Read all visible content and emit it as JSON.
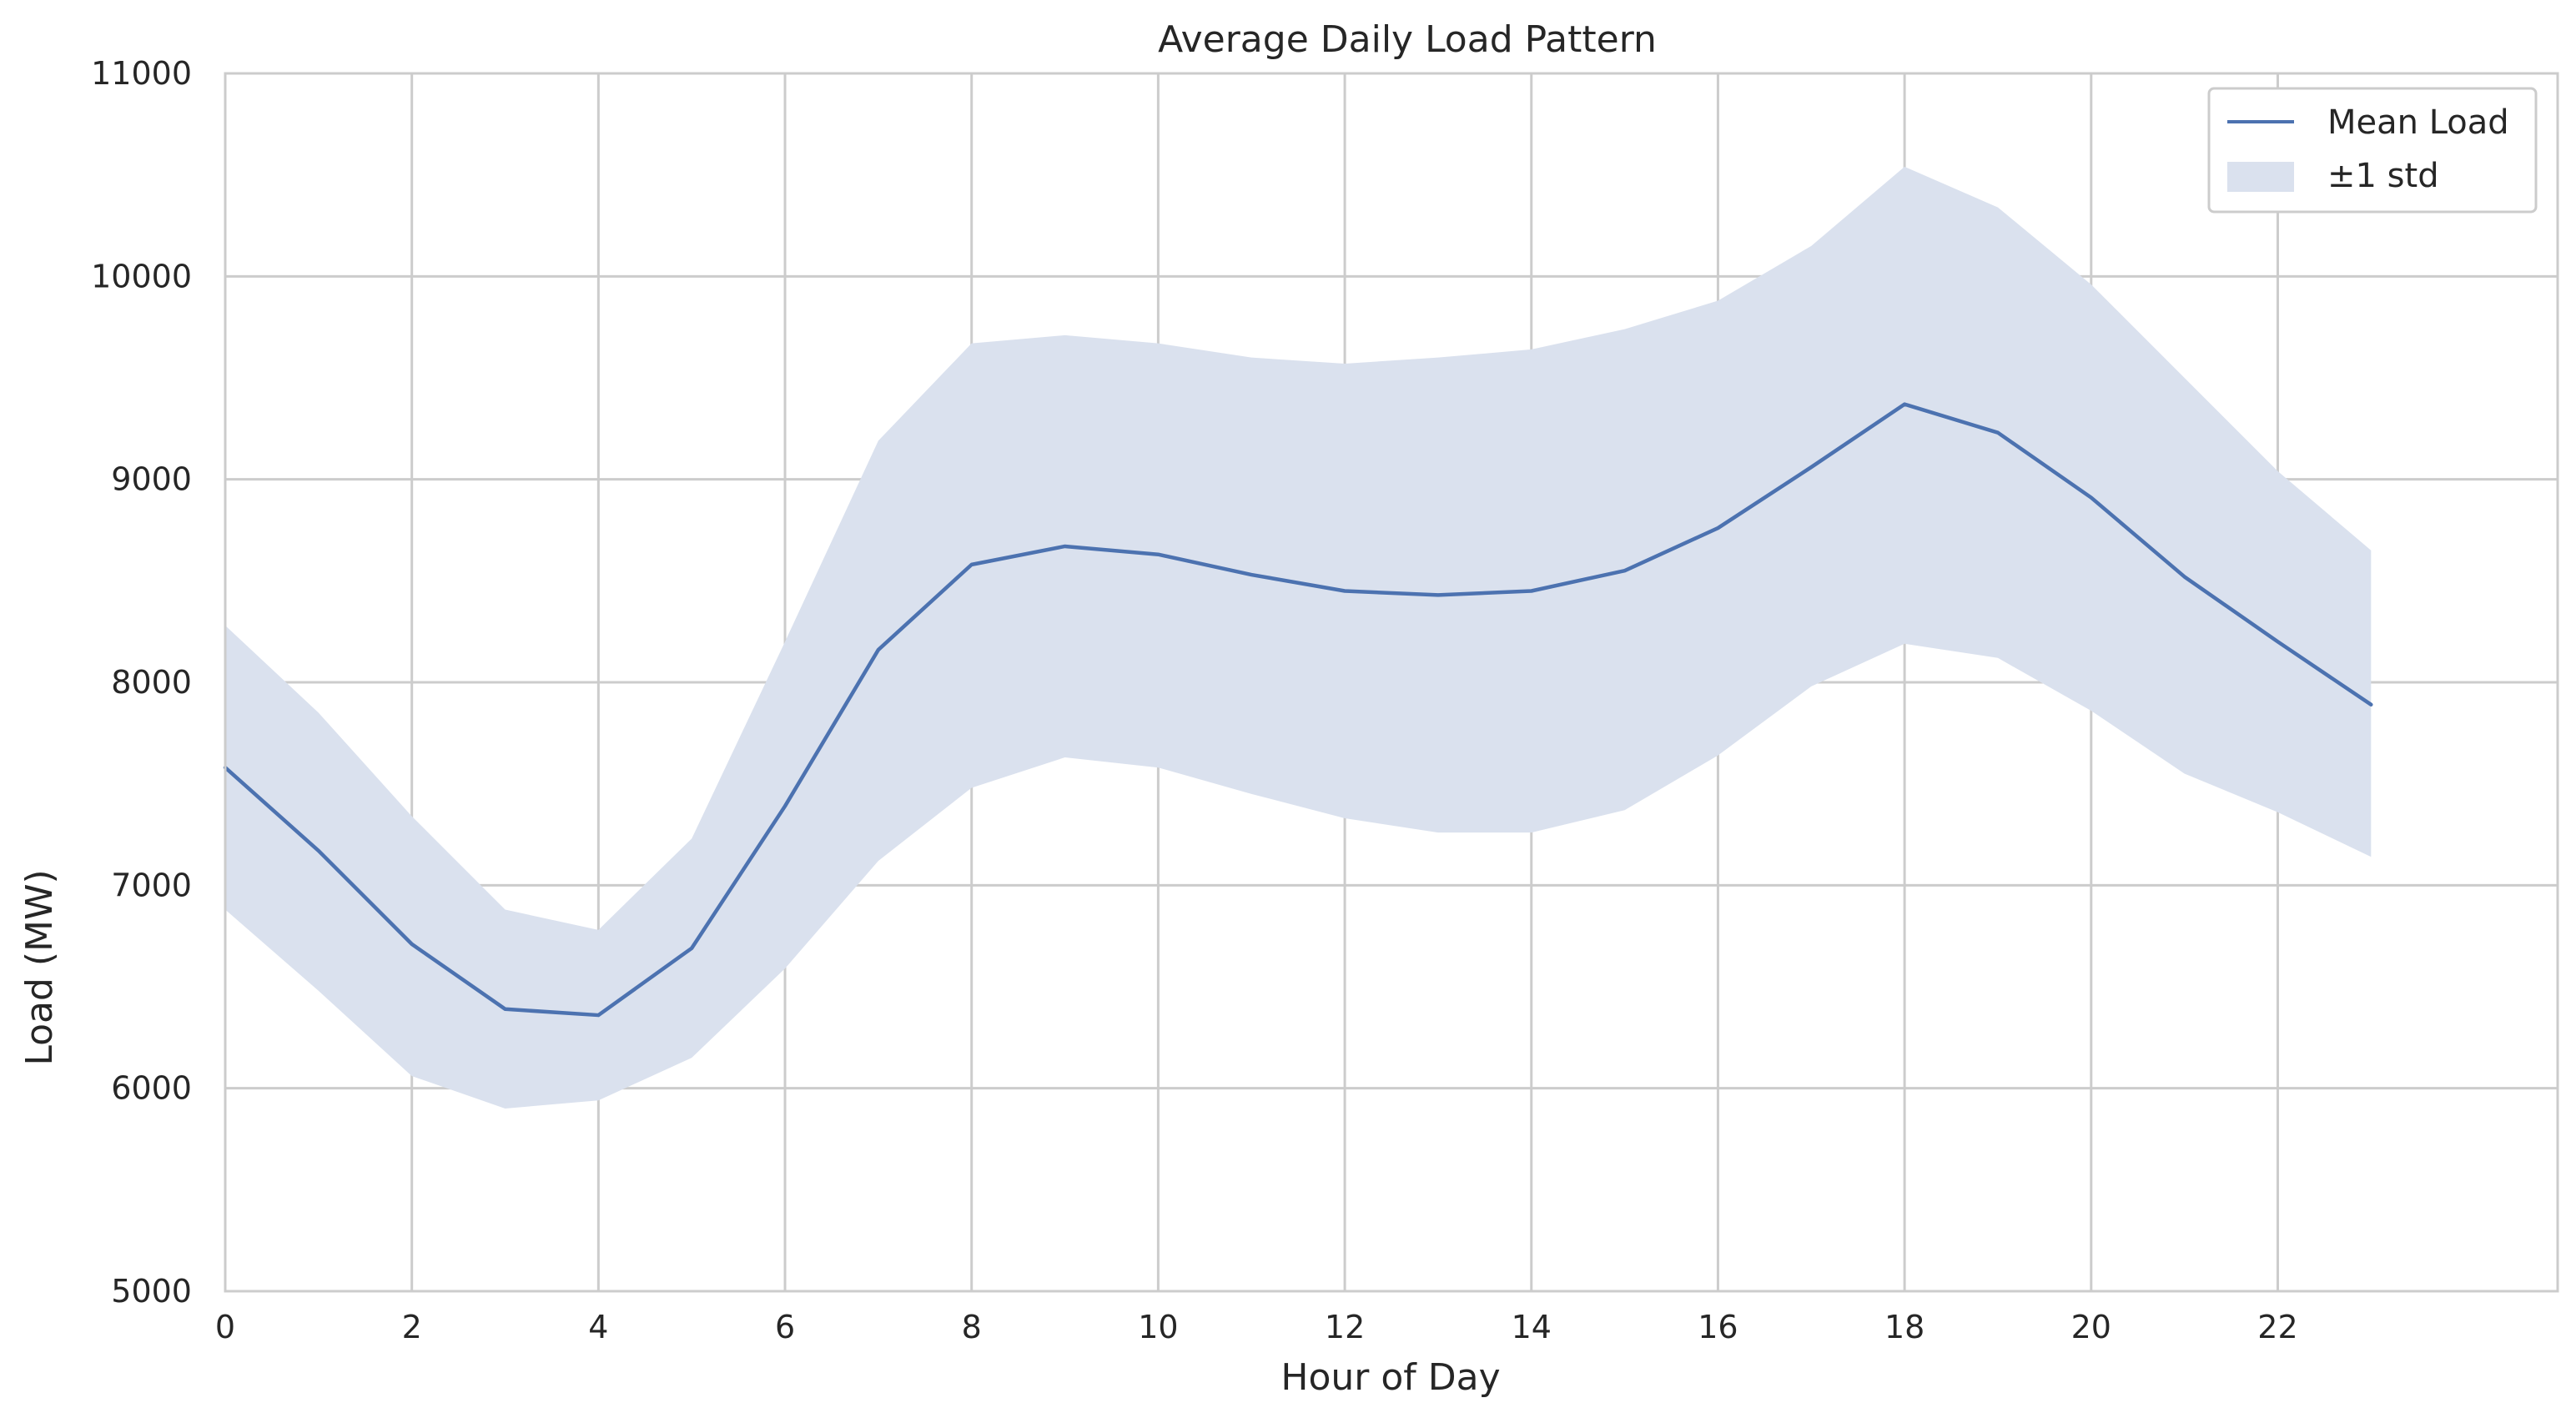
{
  "chart_data": {
    "type": "line",
    "title": "Average Daily Load Pattern",
    "xlabel": "Hour of Day",
    "ylabel": "Load (MW)",
    "xlim": [
      0,
      25
    ],
    "ylim": [
      5000,
      11000
    ],
    "x_ticks": [
      0,
      2,
      4,
      6,
      8,
      10,
      12,
      14,
      16,
      18,
      20,
      22
    ],
    "y_ticks": [
      5000,
      6000,
      7000,
      8000,
      9000,
      10000,
      11000
    ],
    "grid": true,
    "legend_position": "top-right",
    "x": [
      0,
      1,
      2,
      3,
      4,
      5,
      6,
      7,
      8,
      9,
      10,
      11,
      12,
      13,
      14,
      15,
      16,
      17,
      18,
      19,
      20,
      21,
      22,
      23
    ],
    "series": [
      {
        "name": "Mean Load",
        "type": "line",
        "color": "#4c72b0",
        "values": [
          7580,
          7170,
          6710,
          6390,
          6360,
          6690,
          7390,
          8160,
          8580,
          8670,
          8630,
          8530,
          8450,
          8430,
          8450,
          8550,
          8760,
          9060,
          9370,
          9230,
          8910,
          8520,
          8200,
          7890
        ]
      },
      {
        "name": "±1 std",
        "type": "band",
        "color": "#dae1ee",
        "upper": [
          8280,
          7850,
          7340,
          6880,
          6780,
          7230,
          8200,
          9190,
          9670,
          9710,
          9670,
          9600,
          9570,
          9600,
          9640,
          9740,
          9880,
          10150,
          10540,
          10340,
          9960,
          9500,
          9040,
          8650
        ],
        "lower": [
          6880,
          6480,
          6060,
          5900,
          5940,
          6150,
          6590,
          7120,
          7480,
          7630,
          7580,
          7450,
          7330,
          7260,
          7260,
          7370,
          7640,
          7980,
          8190,
          8120,
          7860,
          7550,
          7360,
          7140
        ]
      }
    ]
  }
}
